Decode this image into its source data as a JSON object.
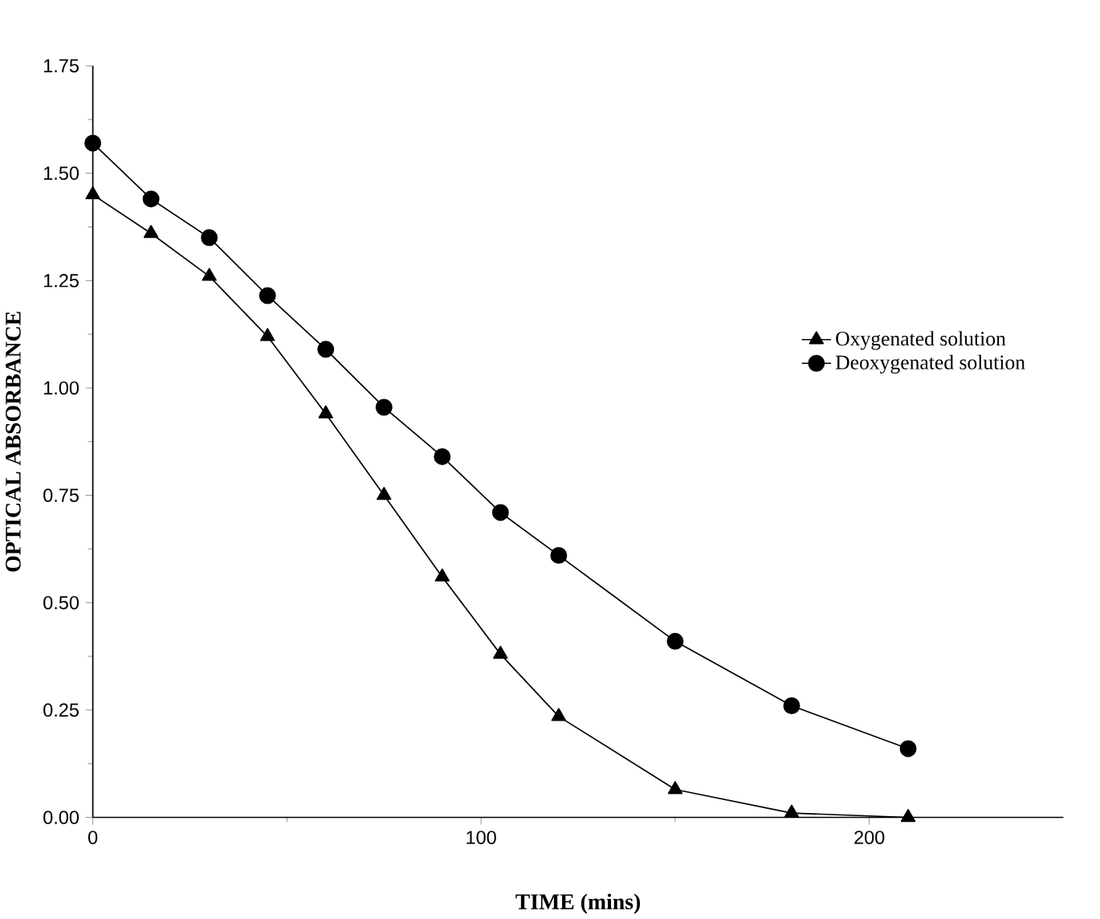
{
  "chart_data": {
    "type": "line",
    "xlabel": "TIME  (mins)",
    "ylabel": "OPTICAL  ABSORBANCE",
    "x": [
      0,
      15,
      30,
      45,
      60,
      75,
      90,
      105,
      120,
      150,
      180,
      210
    ],
    "series": [
      {
        "name": "Oxygenated solution",
        "color": "#000000",
        "marker": "triangle",
        "values": [
          1.45,
          1.36,
          1.26,
          1.12,
          0.94,
          0.75,
          0.56,
          0.38,
          0.235,
          0.065,
          0.01,
          0
        ]
      },
      {
        "name": "Deoxygenated solution",
        "color": "#000000",
        "marker": "circle",
        "values": [
          1.57,
          1.44,
          1.35,
          1.215,
          1.09,
          0.955,
          0.84,
          0.71,
          0.61,
          0.41,
          0.26,
          0.16
        ]
      }
    ],
    "xlim": [
      0,
      250
    ],
    "xticks": [
      0,
      100,
      200
    ],
    "ylim": [
      0,
      1.75
    ],
    "yticks": [
      {
        "value": 0,
        "label": "0.00"
      },
      {
        "value": 0.25,
        "label": "0.25"
      },
      {
        "value": 0.5,
        "label": "0.50"
      },
      {
        "value": 0.75,
        "label": "0.75"
      },
      {
        "value": 1,
        "label": "1.00"
      },
      {
        "value": 1.25,
        "label": "1.25"
      },
      {
        "value": 1.5,
        "label": "1.50"
      },
      {
        "value": 1.75,
        "label": "1.75"
      }
    ],
    "grid": false,
    "legend": "right",
    "line_style": "solid"
  }
}
